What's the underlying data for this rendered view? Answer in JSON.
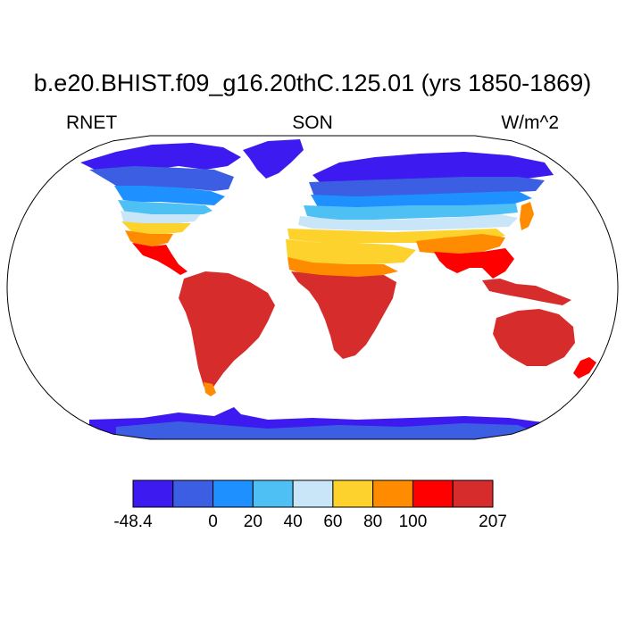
{
  "title": "b.e20.BHIST.f09_g16.20thC.125.01 (yrs 1850-1869)",
  "variable": "RNET",
  "season": "SON",
  "units": "W/m^2",
  "colorbar": {
    "levels": [
      "-48.4",
      "0",
      "20",
      "40",
      "60",
      "80",
      "100",
      "207"
    ],
    "colors": [
      "#3d1af0",
      "#3c5ee2",
      "#1e90ff",
      "#4ec0f4",
      "#c8e6f8",
      "#fdd22d",
      "#ff8c00",
      "#ff0000",
      "#d62c2c"
    ]
  },
  "map": {
    "projection": "Robinson",
    "ocean_color": "#ffffff",
    "coastline_color": "#000000"
  }
}
